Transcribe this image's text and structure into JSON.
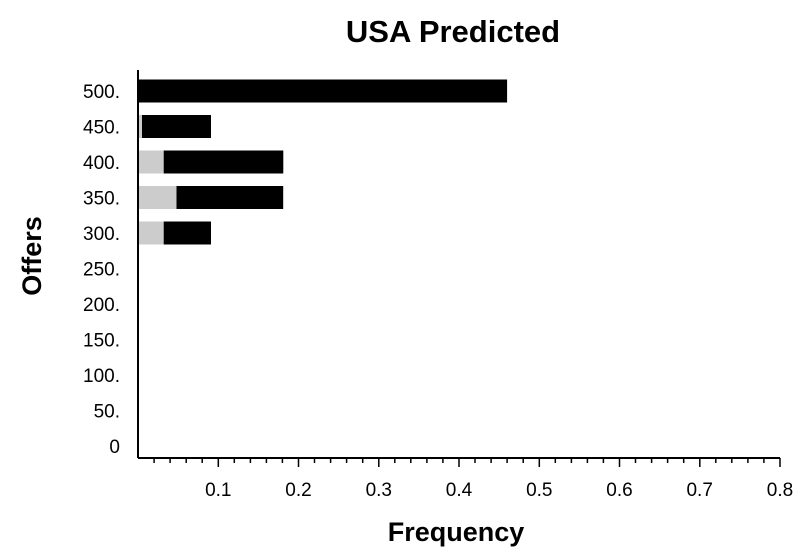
{
  "chart_data": {
    "type": "bar",
    "orientation": "horizontal",
    "stacked": true,
    "title": "USA Predicted",
    "xlabel": "Frequency",
    "ylabel": "Offers",
    "categories": [
      "0",
      "50.",
      "100.",
      "150.",
      "200.",
      "250.",
      "300.",
      "350.",
      "400.",
      "450.",
      "500."
    ],
    "series": [
      {
        "values": [
          0,
          0,
          0,
          0,
          0,
          0,
          0.032,
          0.048,
          0.032,
          0.005,
          0
        ],
        "color": "#cccccc"
      },
      {
        "values": [
          0,
          0,
          0,
          0,
          0,
          0,
          0.059,
          0.133,
          0.149,
          0.086,
          0.46
        ],
        "color": "#000000"
      }
    ],
    "xlim": [
      0,
      0.8
    ],
    "xticks": [
      "0.1",
      "0.2",
      "0.3",
      "0.4",
      "0.5",
      "0.6",
      "0.7",
      "0.8"
    ],
    "grid": false,
    "legend": "none"
  }
}
